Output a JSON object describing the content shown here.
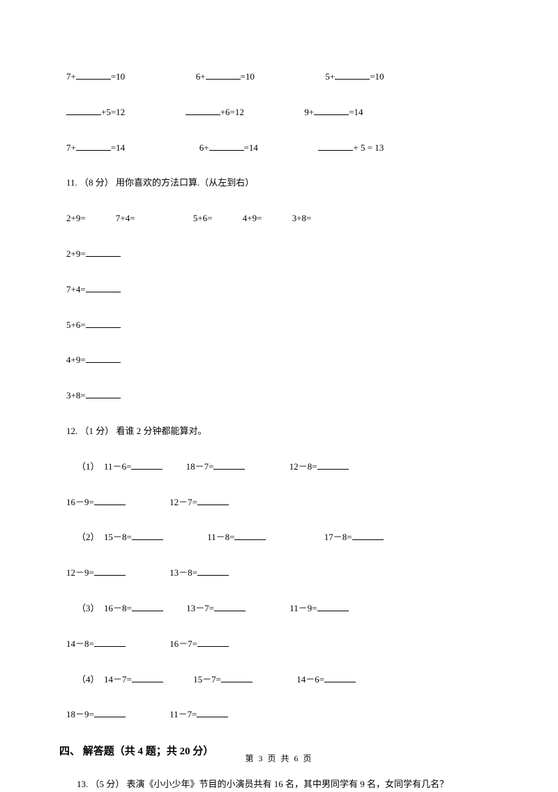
{
  "row1": {
    "a_pre": "7+",
    "a_post": "=10",
    "b_pre": "6+",
    "b_post": "=10",
    "c_pre": "5+",
    "c_post": "=10"
  },
  "row2": {
    "a_post": "+5=12",
    "b_post": "+6=12",
    "c_pre": "9+",
    "c_post": "=14"
  },
  "row3": {
    "a_pre": "7+",
    "a_post": "=14",
    "b_pre": "6+",
    "b_post": "=14",
    "c_post": "+ 5 = 13"
  },
  "q11": {
    "header": "11. （8 分） 用你喜欢的方法口算.（从左到右）",
    "inline": {
      "a": "2+9=",
      "b": "7+4=",
      "c": "5+6=",
      "d": "4+9=",
      "e": "3+8="
    },
    "l1": "2+9=",
    "l2": "7+4=",
    "l3": "5+6=",
    "l4": "4+9=",
    "l5": "3+8="
  },
  "q12": {
    "header": "12. （1 分） 看谁 2 分钟都能算对。",
    "g1": {
      "label": "（1）",
      "a": "11－6=",
      "b": "18－7=",
      "c": "12－8=",
      "d": "16－9=",
      "e": "12－7="
    },
    "g2": {
      "label": "（2）",
      "a": "15－8=",
      "b": "11－8=",
      "c": "17－8=",
      "d": "12－9=",
      "e": "13－8="
    },
    "g3": {
      "label": "（3）",
      "a": "16－8=",
      "b": "13－7=",
      "c": "11－9=",
      "d": "14－8=",
      "e": "16－7="
    },
    "g4": {
      "label": "（4）",
      "a": "14－7=",
      "b": "15－7=",
      "c": "14－6=",
      "d": "18－9=",
      "e": "11－7="
    }
  },
  "section4": "四、 解答题（共 4 题；共 20 分）",
  "q13": "13. （5 分） 表演《小小少年》节目的小演员共有 16 名，其中男同学有 9 名，女同学有几名？",
  "footer": "第 3 页 共 6 页"
}
